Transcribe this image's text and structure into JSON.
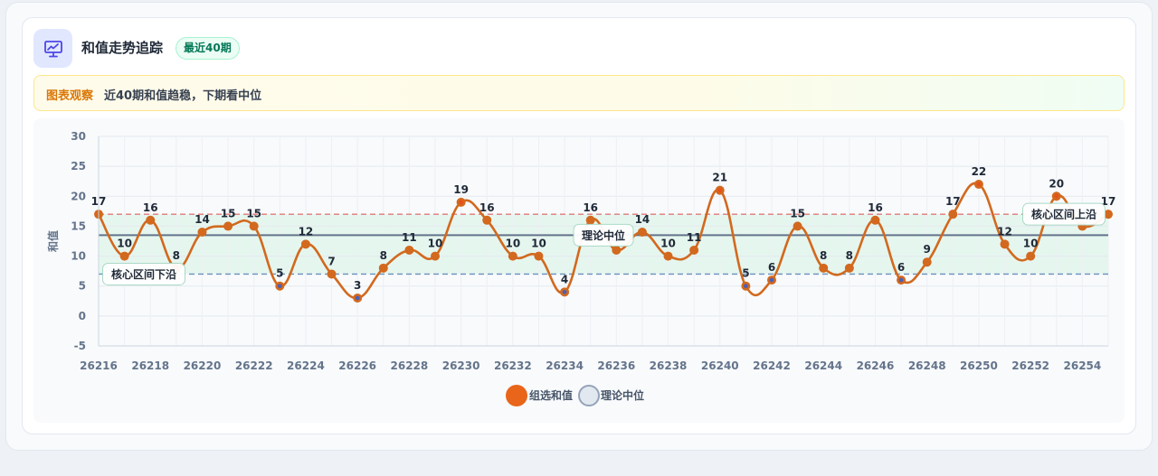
{
  "header": {
    "title": "和值走势追踪",
    "badge": "最近40期",
    "icon": "presentation-chart-icon"
  },
  "observation": {
    "label": "图表观察",
    "text": "近40期和值趋稳，下期看中位"
  },
  "colors": {
    "series": "#d2691e",
    "point_above": "#e8501a",
    "point_below": "#4f5fb0",
    "median_line": "#64748b",
    "upper_line": "#e07a7a",
    "lower_line": "#6b8fbf",
    "band": "#dff4ea"
  },
  "chart_data": {
    "type": "line",
    "ylabel": "和值",
    "xlabel": "",
    "ylim": [
      -5,
      30
    ],
    "yticks": [
      -5,
      0,
      5,
      10,
      15,
      20,
      25,
      30
    ],
    "x": [
      26216,
      26217,
      26218,
      26219,
      26220,
      26221,
      26222,
      26223,
      26224,
      26225,
      26226,
      26227,
      26228,
      26229,
      26230,
      26231,
      26232,
      26233,
      26234,
      26235,
      26236,
      26237,
      26238,
      26239,
      26240,
      26241,
      26242,
      26243,
      26244,
      26245,
      26246,
      26247,
      26248,
      26249,
      26250,
      26251,
      26252,
      26253,
      26254,
      26255
    ],
    "xtick_labels": [
      "26216",
      "26218",
      "26220",
      "26222",
      "26224",
      "26226",
      "26228",
      "26230",
      "26232",
      "26234",
      "26236",
      "26238",
      "26240",
      "26242",
      "26244",
      "26246",
      "26248",
      "26250",
      "26252",
      "26254"
    ],
    "series": [
      {
        "name": "组选和值",
        "values": [
          17,
          10,
          16,
          8,
          14,
          15,
          15,
          5,
          12,
          7,
          3,
          8,
          11,
          10,
          19,
          16,
          10,
          10,
          4,
          16,
          11,
          14,
          10,
          11,
          21,
          5,
          6,
          15,
          8,
          8,
          16,
          6,
          9,
          17,
          22,
          12,
          10,
          20,
          15,
          17
        ]
      }
    ],
    "reference_lines": {
      "median": {
        "name": "理论中位",
        "value": 13.5
      },
      "core_upper": {
        "name": "核心区间上沿",
        "value": 17
      },
      "core_lower": {
        "name": "核心区间下沿",
        "value": 7
      }
    },
    "legend": [
      "组选和值",
      "理论中位"
    ],
    "legend_position": "bottom",
    "grid": true
  }
}
